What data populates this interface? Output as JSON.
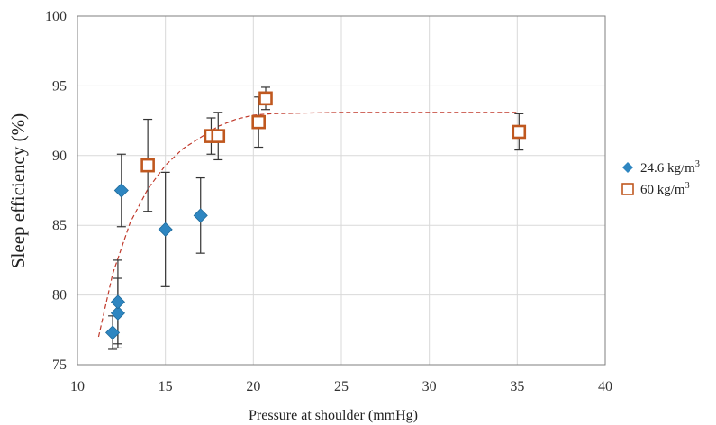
{
  "chart_data": {
    "type": "scatter",
    "title": "",
    "xlabel": "Pressure at shoulder (mmHg)",
    "ylabel": "Sleep efficiency (%)",
    "xlim": [
      10,
      40
    ],
    "ylim": [
      75,
      100
    ],
    "xticks": [
      "10",
      "15",
      "20",
      "25",
      "30",
      "35",
      "40"
    ],
    "yticks": [
      "75",
      "80",
      "85",
      "90",
      "95",
      "100"
    ],
    "grid": "horizontal and vertical",
    "legend_position": "right",
    "series": [
      {
        "name": "24.6 kg/m",
        "name_sup": "3",
        "marker": "diamond",
        "color": "#2e86c1",
        "points": [
          {
            "x": 12.0,
            "y": 77.3,
            "err": 1.2
          },
          {
            "x": 12.3,
            "y": 78.7,
            "err": 2.5
          },
          {
            "x": 12.3,
            "y": 79.5,
            "err": 3.0
          },
          {
            "x": 12.5,
            "y": 87.5,
            "err": 2.6
          },
          {
            "x": 15.0,
            "y": 84.7,
            "err": 4.1
          },
          {
            "x": 17.0,
            "y": 85.7,
            "err": 2.7
          }
        ]
      },
      {
        "name": "60 kg/m",
        "name_sup": "3",
        "marker": "square",
        "color": "#c0581f",
        "points": [
          {
            "x": 14.0,
            "y": 89.3,
            "err": 3.3
          },
          {
            "x": 17.6,
            "y": 91.4,
            "err": 1.3
          },
          {
            "x": 18.0,
            "y": 91.4,
            "err": 1.7
          },
          {
            "x": 20.3,
            "y": 92.4,
            "err": 1.8
          },
          {
            "x": 20.7,
            "y": 94.1,
            "err": 0.8
          },
          {
            "x": 35.1,
            "y": 91.7,
            "err": 1.3
          }
        ]
      }
    ],
    "trendline": {
      "style": "dashed",
      "color": "#c0392b",
      "points": [
        {
          "x": 11.2,
          "y": 77.0
        },
        {
          "x": 12.0,
          "y": 81.5
        },
        {
          "x": 13.0,
          "y": 85.2
        },
        {
          "x": 14.0,
          "y": 87.6
        },
        {
          "x": 15.0,
          "y": 89.3
        },
        {
          "x": 16.0,
          "y": 90.5
        },
        {
          "x": 17.0,
          "y": 91.3
        },
        {
          "x": 18.0,
          "y": 92.1
        },
        {
          "x": 19.0,
          "y": 92.6
        },
        {
          "x": 20.0,
          "y": 92.9
        },
        {
          "x": 21.0,
          "y": 93.0
        },
        {
          "x": 25.0,
          "y": 93.1
        },
        {
          "x": 30.0,
          "y": 93.1
        },
        {
          "x": 35.0,
          "y": 93.1
        }
      ]
    }
  }
}
